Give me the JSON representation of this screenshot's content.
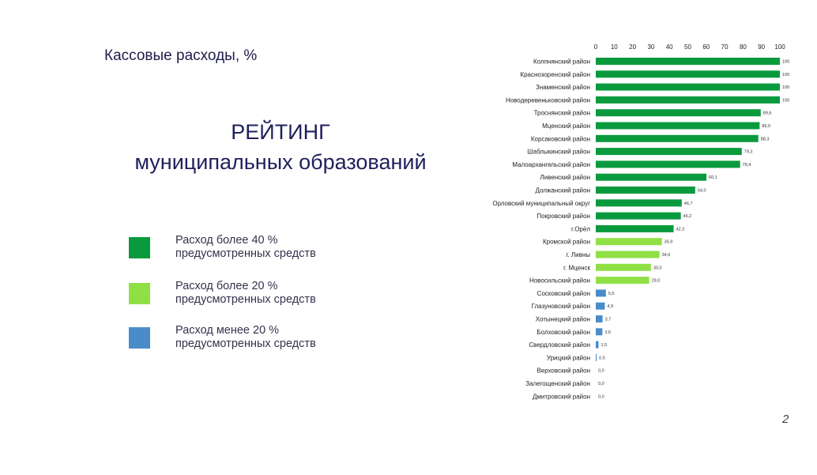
{
  "subtitle": "Кассовые расходы, %",
  "heading": [
    "РЕЙТИНГ",
    "муниципальных образований"
  ],
  "legend": [
    {
      "line1": "Расход более 40 %",
      "line2": "предусмотренных средств",
      "color": "#0a9a3e"
    },
    {
      "line1": "Расход более 20 %",
      "line2": "предусмотренных средств",
      "color": "#8fe045"
    },
    {
      "line1": "Расход менее 20 %",
      "line2": "предусмотренных средств",
      "color": "#4a8cca"
    }
  ],
  "page_number": "2",
  "chart_data": {
    "type": "bar",
    "orientation": "horizontal",
    "x_ticks": [
      0,
      10,
      20,
      30,
      40,
      50,
      60,
      70,
      80,
      90,
      100
    ],
    "xlim": [
      0,
      100
    ],
    "grid": false,
    "categories": [
      "Колпнянский район",
      "Краснозоренский район",
      "Знаменский район",
      "Новодеревеньковский район",
      "Троснянский район",
      "Мценский район",
      "Корсаковский район",
      "Шаблыкинский район",
      "Малоархангельский район",
      "Ливенский район",
      "Должанский район",
      "Орловский муниципальный округ",
      "Покровский район",
      "г.Орёл",
      "Кромской район",
      "г. Ливны",
      "г. Мценск",
      "Новосильский район",
      "Сосковский район",
      "Глазуновский район",
      "Хотынецкий район",
      "Болховский район",
      "Свердловский район",
      "Урицкий район",
      "Верховский район",
      "Залегощенский район",
      "Дмитровский район"
    ],
    "values": [
      100,
      100,
      100,
      100,
      89.6,
      89.0,
      88.3,
      79.3,
      78.4,
      60.1,
      54.0,
      46.7,
      46.2,
      42.3,
      35.9,
      34.6,
      30.0,
      29.0,
      5.5,
      4.9,
      3.7,
      3.6,
      1.5,
      0.5,
      0.0,
      0.0,
      0.0
    ],
    "value_labels": [
      "100",
      "100",
      "100",
      "100",
      "89,6",
      "89,0",
      "88,3",
      "79,3",
      "78,4",
      "60,1",
      "54,0",
      "46,7",
      "46,2",
      "42,3",
      "35,9",
      "34,6",
      "30,0",
      "29,0",
      "5,5",
      "4,9",
      "3,7",
      "3,6",
      "1,5",
      "0,5",
      "0,0",
      "0,0",
      "0,0"
    ],
    "colors": {
      "high": "#0a9a3e",
      "mid": "#8fe045",
      "low": "#4a8cca"
    }
  }
}
